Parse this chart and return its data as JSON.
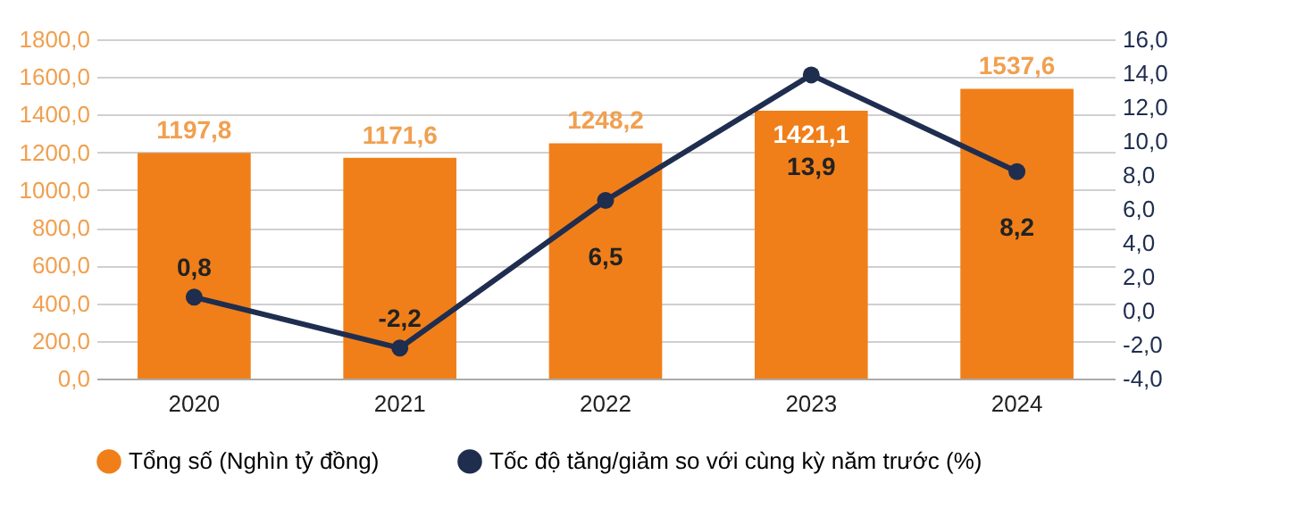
{
  "chart_data": {
    "type": "bar",
    "categories": [
      "2020",
      "2021",
      "2022",
      "2023",
      "2024"
    ],
    "series": [
      {
        "name": "Tổng số (Nghìn tỷ đồng)",
        "type": "bar",
        "color": "#f07f1a",
        "values": [
          1197.8,
          1171.6,
          1248.2,
          1421.1,
          1537.6
        ],
        "value_labels": [
          "1197,8",
          "1171,6",
          "1248,2",
          "1421,1",
          "1537,6"
        ]
      },
      {
        "name": "Tốc độ tăng/giảm so với cùng kỳ năm trước (%)",
        "type": "line",
        "axis": "y2",
        "color": "#1f2d4f",
        "values": [
          0.8,
          -2.2,
          6.5,
          13.9,
          8.2
        ],
        "value_labels": [
          "0,8",
          "-2,2",
          "6,5",
          "13,9",
          "8,2"
        ]
      }
    ],
    "ylim": [
      0,
      1800
    ],
    "yticks": [
      {
        "value": 0,
        "label": "0,0"
      },
      {
        "value": 200,
        "label": "200,0"
      },
      {
        "value": 400,
        "label": "400,0"
      },
      {
        "value": 600,
        "label": "600,0"
      },
      {
        "value": 800,
        "label": "800,0"
      },
      {
        "value": 1000,
        "label": "1000,0"
      },
      {
        "value": 1200,
        "label": "1200,0"
      },
      {
        "value": 1400,
        "label": "1400,0"
      },
      {
        "value": 1600,
        "label": "1600,0"
      },
      {
        "value": 1800,
        "label": "1800,0"
      }
    ],
    "y2lim": [
      -4,
      16
    ],
    "y2ticks": [
      {
        "value": -4,
        "label": "-4,0"
      },
      {
        "value": -2,
        "label": "-2,0"
      },
      {
        "value": 0,
        "label": "0,0"
      },
      {
        "value": 2,
        "label": "2,0"
      },
      {
        "value": 4,
        "label": "4,0"
      },
      {
        "value": 6,
        "label": "6,0"
      },
      {
        "value": 8,
        "label": "8,0"
      },
      {
        "value": 10,
        "label": "10,0"
      },
      {
        "value": 12,
        "label": "12,0"
      },
      {
        "value": 14,
        "label": "14,0"
      },
      {
        "value": 16,
        "label": "16,0"
      }
    ],
    "grid": true,
    "legend": "bottom",
    "marker": "circle",
    "line_style": "solid"
  }
}
